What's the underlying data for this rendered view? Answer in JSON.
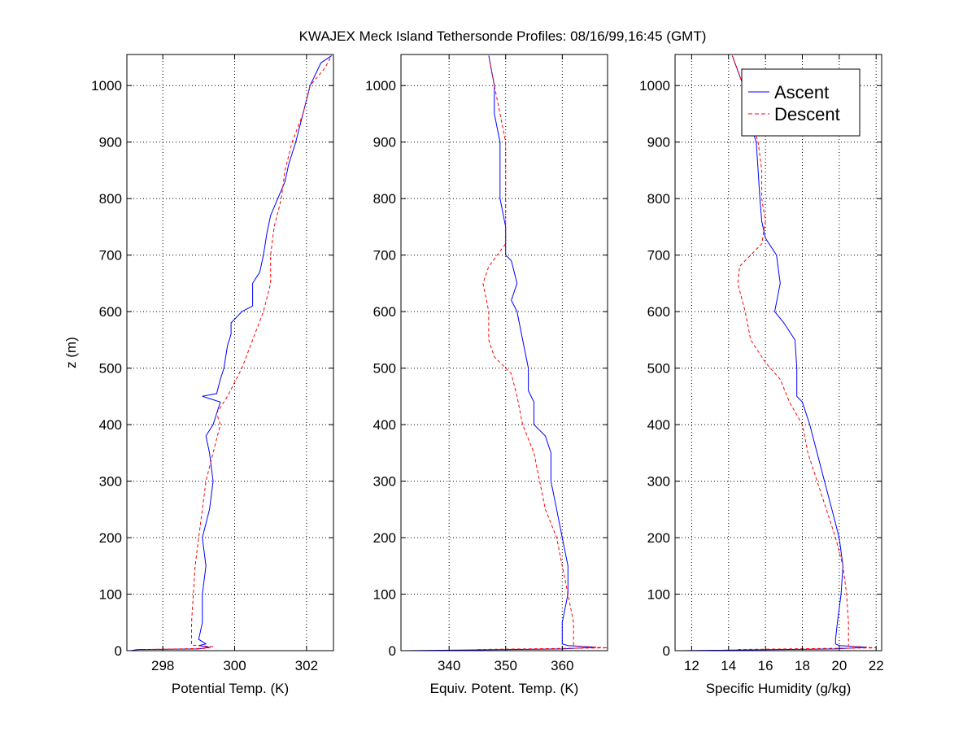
{
  "figure": {
    "title": "KWAJEX Meck Island Tethersonde Profiles: 08/16/99,16:45 (GMT)"
  },
  "chart_data": [
    {
      "type": "line",
      "xlabel": "Potential Temp. (K)",
      "ylabel": "z (m)",
      "xlim": [
        297,
        302.75
      ],
      "ylim": [
        0,
        1055
      ],
      "xticks": [
        298,
        300,
        302
      ],
      "xtick_labels": [
        "298",
        "300",
        "302"
      ],
      "yticks": [
        0,
        100,
        200,
        300,
        400,
        500,
        600,
        700,
        800,
        900,
        1000
      ],
      "ytick_labels": [
        "0",
        "100",
        "200",
        "300",
        "400",
        "500",
        "600",
        "700",
        "800",
        "900",
        "1000"
      ],
      "grid": true,
      "series": [
        {
          "name": "Ascent",
          "color": "#0000ff",
          "style": "solid",
          "points": [
            [
              297.1,
              0
            ],
            [
              297.3,
              2
            ],
            [
              299.0,
              3
            ],
            [
              299.3,
              6
            ],
            [
              299.0,
              9
            ],
            [
              299.2,
              12
            ],
            [
              299.0,
              20
            ],
            [
              299.1,
              50
            ],
            [
              299.1,
              100
            ],
            [
              299.2,
              150
            ],
            [
              299.1,
              200
            ],
            [
              299.3,
              250
            ],
            [
              299.4,
              300
            ],
            [
              299.3,
              350
            ],
            [
              299.2,
              380
            ],
            [
              299.4,
              400
            ],
            [
              299.6,
              440
            ],
            [
              299.1,
              450
            ],
            [
              299.5,
              455
            ],
            [
              299.6,
              480
            ],
            [
              299.7,
              500
            ],
            [
              299.8,
              540
            ],
            [
              299.9,
              560
            ],
            [
              299.9,
              580
            ],
            [
              300.2,
              600
            ],
            [
              300.5,
              610
            ],
            [
              300.5,
              650
            ],
            [
              300.7,
              670
            ],
            [
              300.8,
              700
            ],
            [
              300.9,
              740
            ],
            [
              301.0,
              770
            ],
            [
              301.2,
              800
            ],
            [
              301.4,
              830
            ],
            [
              301.5,
              860
            ],
            [
              301.7,
              900
            ],
            [
              301.9,
              950
            ],
            [
              302.1,
              1000
            ],
            [
              302.4,
              1040
            ],
            [
              302.7,
              1053
            ]
          ]
        },
        {
          "name": "Descent",
          "color": "#ff0000",
          "style": "dashed",
          "points": [
            [
              297.5,
              2
            ],
            [
              299.2,
              4
            ],
            [
              299.4,
              7
            ],
            [
              298.8,
              10
            ],
            [
              298.8,
              50
            ],
            [
              298.9,
              150
            ],
            [
              299.0,
              200
            ],
            [
              299.1,
              250
            ],
            [
              299.2,
              300
            ],
            [
              299.4,
              350
            ],
            [
              299.6,
              400
            ],
            [
              299.5,
              420
            ],
            [
              299.8,
              450
            ],
            [
              300.2,
              500
            ],
            [
              300.5,
              550
            ],
            [
              300.8,
              600
            ],
            [
              301.0,
              650
            ],
            [
              301.0,
              700
            ],
            [
              301.1,
              750
            ],
            [
              301.3,
              800
            ],
            [
              301.4,
              850
            ],
            [
              301.6,
              900
            ],
            [
              301.9,
              950
            ],
            [
              302.1,
              1000
            ],
            [
              302.5,
              1030
            ],
            [
              302.7,
              1053
            ]
          ]
        }
      ]
    },
    {
      "type": "line",
      "xlabel": "Equiv. Potent. Temp. (K)",
      "ylabel": "",
      "xlim": [
        331.5,
        368
      ],
      "ylim": [
        0,
        1055
      ],
      "xticks": [
        340,
        350,
        360
      ],
      "xtick_labels": [
        "340",
        "350",
        "360"
      ],
      "yticks": [
        0,
        100,
        200,
        300,
        400,
        500,
        600,
        700,
        800,
        900,
        1000
      ],
      "ytick_labels": [
        "0",
        "100",
        "200",
        "300",
        "400",
        "500",
        "600",
        "700",
        "800",
        "900",
        "1000"
      ],
      "grid": true,
      "series": [
        {
          "name": "Ascent",
          "color": "#0000ff",
          "style": "solid",
          "points": [
            [
              332,
              0
            ],
            [
              360,
              3
            ],
            [
              366,
              6
            ],
            [
              361,
              9
            ],
            [
              360,
              12
            ],
            [
              360,
              20
            ],
            [
              360,
              50
            ],
            [
              361,
              100
            ],
            [
              361,
              150
            ],
            [
              360,
              200
            ],
            [
              359,
              250
            ],
            [
              358,
              300
            ],
            [
              358,
              350
            ],
            [
              357,
              380
            ],
            [
              355,
              400
            ],
            [
              355,
              440
            ],
            [
              354,
              460
            ],
            [
              354,
              500
            ],
            [
              353,
              550
            ],
            [
              352,
              600
            ],
            [
              351,
              620
            ],
            [
              352,
              650
            ],
            [
              351,
              690
            ],
            [
              350,
              700
            ],
            [
              350,
              750
            ],
            [
              349,
              800
            ],
            [
              349,
              850
            ],
            [
              349,
              900
            ],
            [
              348,
              950
            ],
            [
              348,
              1000
            ],
            [
              347,
              1053
            ]
          ]
        },
        {
          "name": "Descent",
          "color": "#ff0000",
          "style": "dashed",
          "points": [
            [
              345,
              2
            ],
            [
              368,
              5
            ],
            [
              362,
              8
            ],
            [
              362,
              20
            ],
            [
              362,
              50
            ],
            [
              361,
              100
            ],
            [
              360,
              150
            ],
            [
              359,
              200
            ],
            [
              357,
              250
            ],
            [
              356,
              300
            ],
            [
              355,
              350
            ],
            [
              353,
              400
            ],
            [
              352,
              450
            ],
            [
              351,
              490
            ],
            [
              348,
              520
            ],
            [
              347,
              550
            ],
            [
              347,
              600
            ],
            [
              346,
              650
            ],
            [
              347,
              680
            ],
            [
              350,
              720
            ],
            [
              350,
              760
            ],
            [
              350,
              800
            ],
            [
              350,
              850
            ],
            [
              350,
              900
            ],
            [
              349,
              950
            ],
            [
              348,
              1000
            ],
            [
              347,
              1053
            ]
          ]
        }
      ]
    },
    {
      "type": "line",
      "xlabel": "Specific Humidity (g/kg)",
      "ylabel": "",
      "xlim": [
        11.1,
        22.3
      ],
      "ylim": [
        0,
        1055
      ],
      "xticks": [
        12,
        14,
        16,
        18,
        20,
        22
      ],
      "xtick_labels": [
        "12",
        "14",
        "16",
        "18",
        "20",
        "22"
      ],
      "yticks": [
        0,
        100,
        200,
        300,
        400,
        500,
        600,
        700,
        800,
        900,
        1000
      ],
      "ytick_labels": [
        "0",
        "100",
        "200",
        "300",
        "400",
        "500",
        "600",
        "700",
        "800",
        "900",
        "1000"
      ],
      "grid": true,
      "series": [
        {
          "name": "Ascent",
          "color": "#0000ff",
          "style": "solid",
          "points": [
            [
              11.3,
              0
            ],
            [
              19.8,
              3
            ],
            [
              21.5,
              6
            ],
            [
              20,
              9
            ],
            [
              19.8,
              12
            ],
            [
              19.8,
              20
            ],
            [
              19.9,
              50
            ],
            [
              20.1,
              100
            ],
            [
              20.2,
              150
            ],
            [
              20.0,
              200
            ],
            [
              19.6,
              250
            ],
            [
              19.2,
              300
            ],
            [
              18.8,
              350
            ],
            [
              18.4,
              400
            ],
            [
              18.0,
              440
            ],
            [
              17.7,
              450
            ],
            [
              17.7,
              500
            ],
            [
              17.6,
              550
            ],
            [
              17.0,
              580
            ],
            [
              16.5,
              600
            ],
            [
              16.8,
              650
            ],
            [
              16.6,
              700
            ],
            [
              16.0,
              730
            ],
            [
              15.8,
              760
            ],
            [
              15.7,
              800
            ],
            [
              15.6,
              850
            ],
            [
              15.5,
              900
            ],
            [
              15.0,
              950
            ],
            [
              14.8,
              1000
            ],
            [
              14.2,
              1053
            ]
          ]
        },
        {
          "name": "Descent",
          "color": "#ff0000",
          "style": "dashed",
          "points": [
            [
              14.5,
              2
            ],
            [
              22.0,
              5
            ],
            [
              20.5,
              8
            ],
            [
              20.5,
              20
            ],
            [
              20.5,
              50
            ],
            [
              20.4,
              100
            ],
            [
              20.2,
              150
            ],
            [
              19.8,
              200
            ],
            [
              19.3,
              250
            ],
            [
              18.8,
              300
            ],
            [
              18.3,
              350
            ],
            [
              18.0,
              400
            ],
            [
              17.3,
              440
            ],
            [
              16.8,
              480
            ],
            [
              16.0,
              510
            ],
            [
              15.2,
              550
            ],
            [
              14.9,
              600
            ],
            [
              14.5,
              650
            ],
            [
              14.6,
              680
            ],
            [
              15.8,
              720
            ],
            [
              16.0,
              760
            ],
            [
              15.8,
              800
            ],
            [
              15.8,
              850
            ],
            [
              15.6,
              900
            ],
            [
              15.1,
              950
            ],
            [
              14.8,
              1000
            ],
            [
              14.2,
              1053
            ]
          ]
        }
      ]
    }
  ],
  "legend": {
    "entries": [
      {
        "label": "Ascent",
        "color": "#0000ff",
        "style": "solid"
      },
      {
        "label": "Descent",
        "color": "#ff0000",
        "style": "dashed"
      }
    ],
    "panel": 2,
    "placement": "top-right"
  }
}
